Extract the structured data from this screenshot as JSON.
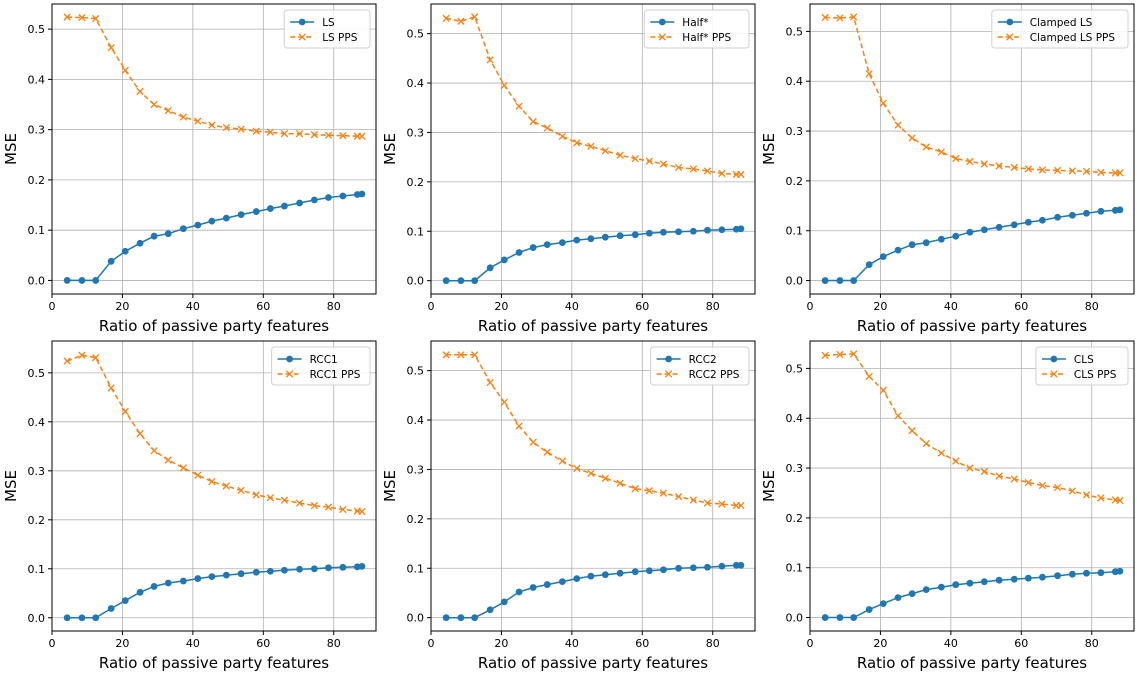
{
  "chart_data": [
    {
      "type": "line",
      "xlabel": "Ratio of passive party features",
      "ylabel": "MSE",
      "xlim": [
        0,
        92
      ],
      "ylim": [
        -0.027,
        0.55
      ],
      "xticks": [
        0,
        20,
        40,
        60,
        80
      ],
      "yticks": [
        0.0,
        0.1,
        0.2,
        0.3,
        0.4,
        0.5
      ],
      "grid": true,
      "legend_position": "top-right",
      "x": [
        4.3,
        8.5,
        12.4,
        16.8,
        20.8,
        25,
        29,
        33,
        37.3,
        41.4,
        45.4,
        49.5,
        53.7,
        58,
        62,
        66,
        70.3,
        74.5,
        78.5,
        82.6,
        86.7,
        88
      ],
      "series": [
        {
          "name": "LS",
          "color": "#1f77b4",
          "marker": "circle",
          "dash": "solid",
          "values": [
            0.0,
            0.0,
            0.0,
            0.038,
            0.058,
            0.074,
            0.088,
            0.093,
            0.103,
            0.11,
            0.118,
            0.124,
            0.131,
            0.137,
            0.143,
            0.148,
            0.154,
            0.16,
            0.165,
            0.168,
            0.171,
            0.172
          ]
        },
        {
          "name": "LS PPS",
          "color": "#ff7f0e",
          "marker": "x",
          "dash": "dashed",
          "values": [
            0.524,
            0.523,
            0.521,
            0.463,
            0.418,
            0.376,
            0.35,
            0.338,
            0.325,
            0.317,
            0.309,
            0.304,
            0.301,
            0.297,
            0.295,
            0.292,
            0.292,
            0.29,
            0.289,
            0.288,
            0.287,
            0.287
          ]
        }
      ]
    },
    {
      "type": "line",
      "xlabel": "Ratio of passive party features",
      "ylabel": "MSE",
      "xlim": [
        0,
        92
      ],
      "ylim": [
        -0.027,
        0.56
      ],
      "xticks": [
        0,
        20,
        40,
        60,
        80
      ],
      "yticks": [
        0.0,
        0.1,
        0.2,
        0.3,
        0.4,
        0.5
      ],
      "grid": true,
      "legend_position": "top-right",
      "x": [
        4.3,
        8.5,
        12.4,
        16.8,
        20.8,
        25,
        29,
        33,
        37.3,
        41.4,
        45.4,
        49.5,
        53.7,
        58,
        62,
        66,
        70.3,
        74.5,
        78.5,
        82.6,
        86.7,
        88
      ],
      "series": [
        {
          "name": "Half*",
          "color": "#1f77b4",
          "marker": "circle",
          "dash": "solid",
          "values": [
            0.0,
            0.0,
            0.0,
            0.026,
            0.042,
            0.057,
            0.067,
            0.073,
            0.077,
            0.082,
            0.085,
            0.088,
            0.091,
            0.093,
            0.096,
            0.098,
            0.099,
            0.1,
            0.102,
            0.103,
            0.104,
            0.105
          ]
        },
        {
          "name": "Half* PPS",
          "color": "#ff7f0e",
          "marker": "x",
          "dash": "dashed",
          "values": [
            0.531,
            0.525,
            0.534,
            0.447,
            0.395,
            0.353,
            0.322,
            0.309,
            0.292,
            0.279,
            0.272,
            0.263,
            0.254,
            0.247,
            0.242,
            0.236,
            0.229,
            0.226,
            0.222,
            0.217,
            0.215,
            0.215
          ]
        }
      ]
    },
    {
      "type": "line",
      "xlabel": "Ratio of passive party features",
      "ylabel": "MSE",
      "xlim": [
        0,
        92
      ],
      "ylim": [
        -0.027,
        0.555
      ],
      "xticks": [
        0,
        20,
        40,
        60,
        80
      ],
      "yticks": [
        0.0,
        0.1,
        0.2,
        0.3,
        0.4,
        0.5
      ],
      "grid": true,
      "legend_position": "top-right",
      "x": [
        4.3,
        8.5,
        12.4,
        16.8,
        20.8,
        25,
        29,
        33,
        37.3,
        41.4,
        45.4,
        49.5,
        53.7,
        58,
        62,
        66,
        70.3,
        74.5,
        78.5,
        82.6,
        86.7,
        88
      ],
      "series": [
        {
          "name": "Clamped LS",
          "color": "#1f77b4",
          "marker": "circle",
          "dash": "solid",
          "values": [
            0.0,
            0.0,
            0.0,
            0.032,
            0.048,
            0.061,
            0.072,
            0.076,
            0.083,
            0.089,
            0.097,
            0.102,
            0.107,
            0.112,
            0.117,
            0.121,
            0.127,
            0.131,
            0.135,
            0.139,
            0.141,
            0.142
          ]
        },
        {
          "name": "Clamped LS PPS",
          "color": "#ff7f0e",
          "marker": "x",
          "dash": "dashed",
          "values": [
            0.528,
            0.527,
            0.529,
            0.415,
            0.356,
            0.312,
            0.286,
            0.268,
            0.258,
            0.245,
            0.239,
            0.234,
            0.23,
            0.227,
            0.224,
            0.222,
            0.221,
            0.22,
            0.219,
            0.217,
            0.216,
            0.216
          ]
        }
      ]
    },
    {
      "type": "line",
      "xlabel": "Ratio of passive party features",
      "ylabel": "MSE",
      "xlim": [
        0,
        92
      ],
      "ylim": [
        -0.027,
        0.565
      ],
      "xticks": [
        0,
        20,
        40,
        60,
        80
      ],
      "yticks": [
        0.0,
        0.1,
        0.2,
        0.3,
        0.4,
        0.5
      ],
      "grid": true,
      "legend_position": "top-right",
      "x": [
        4.3,
        8.5,
        12.4,
        16.8,
        20.8,
        25,
        29,
        33,
        37.3,
        41.4,
        45.4,
        49.5,
        53.7,
        58,
        62,
        66,
        70.3,
        74.5,
        78.5,
        82.6,
        86.7,
        88
      ],
      "series": [
        {
          "name": "RCC1",
          "color": "#1f77b4",
          "marker": "circle",
          "dash": "solid",
          "values": [
            0.0,
            0.0,
            0.0,
            0.019,
            0.035,
            0.052,
            0.064,
            0.071,
            0.075,
            0.08,
            0.084,
            0.087,
            0.09,
            0.093,
            0.095,
            0.097,
            0.099,
            0.1,
            0.102,
            0.103,
            0.104,
            0.105
          ]
        },
        {
          "name": "RCC1 PPS",
          "color": "#ff7f0e",
          "marker": "x",
          "dash": "dashed",
          "values": [
            0.524,
            0.536,
            0.531,
            0.469,
            0.421,
            0.376,
            0.341,
            0.322,
            0.306,
            0.291,
            0.278,
            0.269,
            0.26,
            0.251,
            0.245,
            0.24,
            0.234,
            0.229,
            0.226,
            0.221,
            0.218,
            0.217
          ]
        }
      ]
    },
    {
      "type": "line",
      "xlabel": "Ratio of passive party features",
      "ylabel": "MSE",
      "xlim": [
        0,
        92
      ],
      "ylim": [
        -0.027,
        0.56
      ],
      "xticks": [
        0,
        20,
        40,
        60,
        80
      ],
      "yticks": [
        0.0,
        0.1,
        0.2,
        0.3,
        0.4,
        0.5
      ],
      "grid": true,
      "legend_position": "top-right",
      "x": [
        4.3,
        8.5,
        12.4,
        16.8,
        20.8,
        25,
        29,
        33,
        37.3,
        41.4,
        45.4,
        49.5,
        53.7,
        58,
        62,
        66,
        70.3,
        74.5,
        78.5,
        82.6,
        86.7,
        88
      ],
      "series": [
        {
          "name": "RCC2",
          "color": "#1f77b4",
          "marker": "circle",
          "dash": "solid",
          "values": [
            0.0,
            0.0,
            0.0,
            0.016,
            0.032,
            0.052,
            0.061,
            0.067,
            0.073,
            0.079,
            0.084,
            0.087,
            0.09,
            0.093,
            0.095,
            0.097,
            0.1,
            0.101,
            0.102,
            0.104,
            0.106,
            0.106
          ]
        },
        {
          "name": "RCC2 PPS",
          "color": "#ff7f0e",
          "marker": "x",
          "dash": "dashed",
          "values": [
            0.532,
            0.532,
            0.532,
            0.476,
            0.436,
            0.388,
            0.355,
            0.335,
            0.317,
            0.302,
            0.292,
            0.282,
            0.272,
            0.261,
            0.257,
            0.252,
            0.245,
            0.238,
            0.232,
            0.23,
            0.227,
            0.227
          ]
        }
      ]
    },
    {
      "type": "line",
      "xlabel": "Ratio of passive party features",
      "ylabel": "MSE",
      "xlim": [
        0,
        92
      ],
      "ylim": [
        -0.027,
        0.555
      ],
      "xticks": [
        0,
        20,
        40,
        60,
        80
      ],
      "yticks": [
        0.0,
        0.1,
        0.2,
        0.3,
        0.4,
        0.5
      ],
      "grid": true,
      "legend_position": "top-right",
      "x": [
        4.3,
        8.5,
        12.4,
        16.8,
        20.8,
        25,
        29,
        33,
        37.3,
        41.4,
        45.4,
        49.5,
        53.7,
        58,
        62,
        66,
        70.3,
        74.5,
        78.5,
        82.6,
        86.7,
        88
      ],
      "series": [
        {
          "name": "CLS",
          "color": "#1f77b4",
          "marker": "circle",
          "dash": "solid",
          "values": [
            0.0,
            0.0,
            0.0,
            0.016,
            0.028,
            0.04,
            0.048,
            0.056,
            0.061,
            0.066,
            0.069,
            0.072,
            0.075,
            0.077,
            0.079,
            0.081,
            0.084,
            0.087,
            0.089,
            0.09,
            0.092,
            0.093
          ]
        },
        {
          "name": "CLS PPS",
          "color": "#ff7f0e",
          "marker": "x",
          "dash": "dashed",
          "values": [
            0.526,
            0.528,
            0.529,
            0.484,
            0.456,
            0.405,
            0.375,
            0.349,
            0.33,
            0.314,
            0.3,
            0.293,
            0.284,
            0.278,
            0.271,
            0.265,
            0.261,
            0.254,
            0.246,
            0.24,
            0.236,
            0.235
          ]
        }
      ]
    }
  ]
}
